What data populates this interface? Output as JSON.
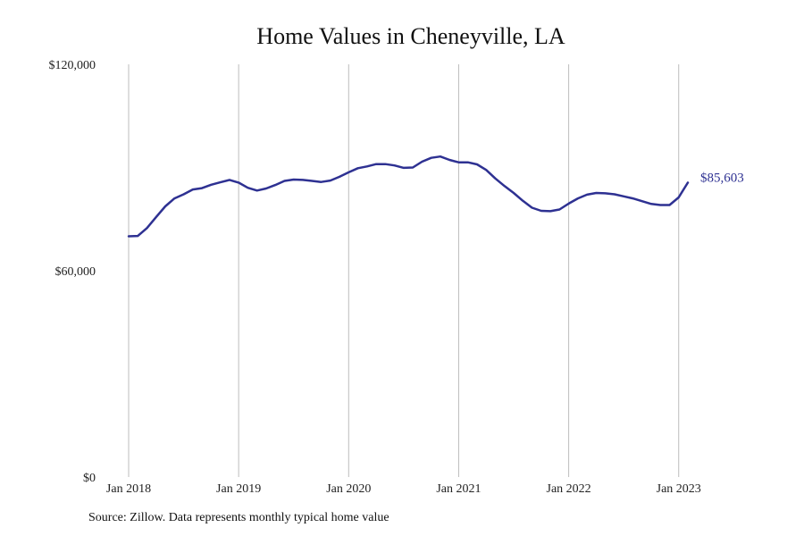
{
  "chart_data": {
    "type": "line",
    "title": "Home Values in Cheneyville, LA",
    "xlabel": "",
    "ylabel": "",
    "ylim": [
      0,
      120000
    ],
    "y_ticks": [
      0,
      60000,
      120000
    ],
    "y_tick_labels": [
      "$0",
      "$60,000",
      "$120,000"
    ],
    "x_tick_labels": [
      "Jan 2018",
      "Jan 2019",
      "Jan 2020",
      "Jan 2021",
      "Jan 2022",
      "Jan 2023"
    ],
    "x_tick_positions": [
      0,
      12,
      24,
      36,
      48,
      60
    ],
    "grid": "vertical",
    "line_color": "#2e3192",
    "end_label": "$85,603",
    "series": [
      {
        "values": [
          70000,
          70100,
          72400,
          75600,
          78700,
          81000,
          82200,
          83600,
          84000,
          85000,
          85700,
          86400,
          85600,
          84100,
          83300,
          83900,
          84900,
          86100,
          86500,
          86400,
          86100,
          85800,
          86200,
          87300,
          88600,
          89800,
          90300,
          91000,
          91000,
          90600,
          89900,
          90000,
          91700,
          92800,
          93200,
          92200,
          91500,
          91500,
          90900,
          89300,
          86800,
          84600,
          82600,
          80300,
          78300,
          77400,
          77300,
          77800,
          79500,
          81000,
          82100,
          82600,
          82500,
          82200,
          81600,
          81000,
          80200,
          79400,
          79100,
          79100,
          81300,
          85603
        ]
      }
    ]
  },
  "footer": {
    "source": "Source: Zillow. Data represents monthly typical home value"
  }
}
